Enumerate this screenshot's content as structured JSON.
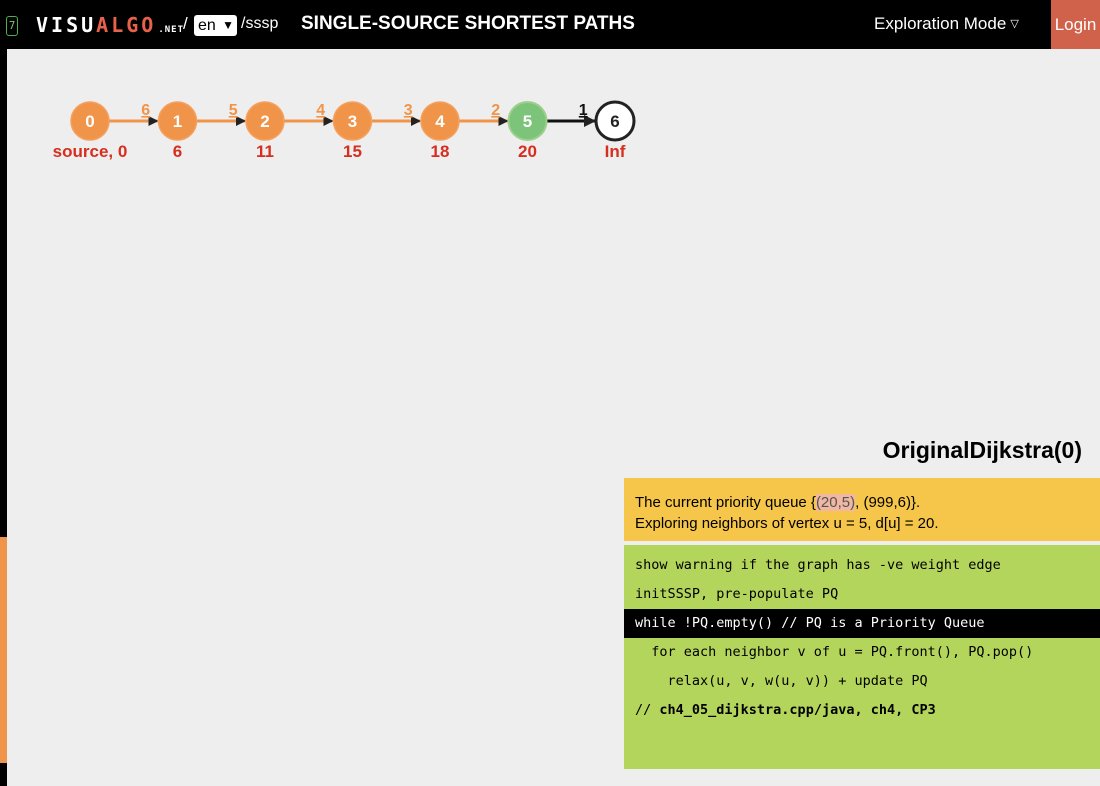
{
  "header": {
    "menu_icon_glyph": "7",
    "logo_main": "VISU",
    "logo_accent": "ALGO",
    "logo_suffix": ".NET",
    "slash": "/",
    "language": "en",
    "path": "/sssp",
    "title": "SINGLE-SOURCE SHORTEST PATHS",
    "mode_label": "Exploration Mode",
    "login_label": "Login"
  },
  "graph": {
    "vertices": [
      {
        "id": "0",
        "dist": "source, 0",
        "state": "visited"
      },
      {
        "id": "1",
        "dist": "6",
        "state": "visited"
      },
      {
        "id": "2",
        "dist": "11",
        "state": "visited"
      },
      {
        "id": "3",
        "dist": "15",
        "state": "visited"
      },
      {
        "id": "4",
        "dist": "18",
        "state": "visited"
      },
      {
        "id": "5",
        "dist": "20",
        "state": "current"
      },
      {
        "id": "6",
        "dist": "Inf",
        "state": "unvisited"
      }
    ],
    "edges": [
      {
        "from": "0",
        "to": "1",
        "weight": "6",
        "state": "tree"
      },
      {
        "from": "1",
        "to": "2",
        "weight": "5",
        "state": "tree"
      },
      {
        "from": "2",
        "to": "3",
        "weight": "4",
        "state": "tree"
      },
      {
        "from": "3",
        "to": "4",
        "weight": "3",
        "state": "tree"
      },
      {
        "from": "4",
        "to": "5",
        "weight": "2",
        "state": "tree"
      },
      {
        "from": "5",
        "to": "6",
        "weight": "1",
        "state": "exploring"
      }
    ],
    "colors": {
      "visited": "#f0944a",
      "current": "#7bc47a",
      "unvisited": "#ffffff",
      "dist": "#d62e1f"
    }
  },
  "algorithm": {
    "title": "OriginalDijkstra(0)",
    "status_pre": "The current priority queue {",
    "status_pq_head": "(20,5)",
    "status_pq_rest": ", (999,6)}.",
    "status_line2": "Exploring neighbors of vertex u = 5, d[u] = 20.",
    "code": [
      {
        "text": "show warning if the graph has -ve weight edge",
        "active": false
      },
      {
        "text": "initSSSP, pre-populate PQ",
        "active": false
      },
      {
        "text": "while !PQ.empty() // PQ is a Priority Queue",
        "active": true
      },
      {
        "text": "  for each neighbor v of u = PQ.front(), PQ.pop()",
        "active": false
      },
      {
        "text": "    relax(u, v, w(u, v)) + update PQ",
        "active": false
      }
    ],
    "footer_comment": "// ",
    "footer_ref": "ch4_05_dijkstra.cpp/java, ch4, CP3"
  }
}
